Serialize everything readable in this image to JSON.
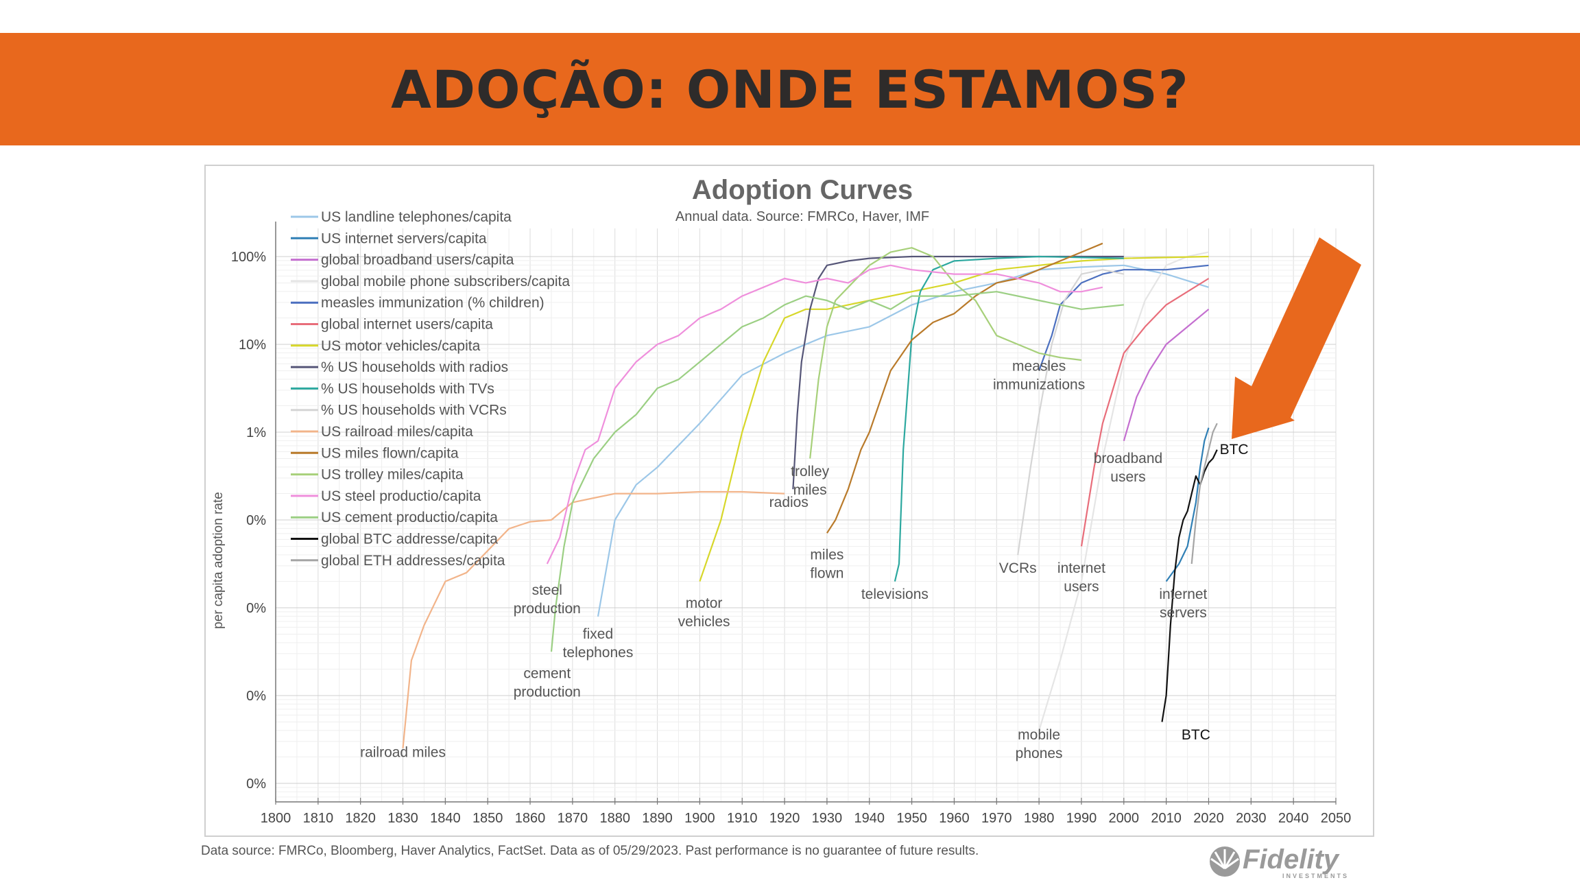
{
  "header": {
    "title": "ADOÇÃO: ONDE ESTAMOS?",
    "accent_color": "#e8681d",
    "title_color": "#2e2b2a"
  },
  "footer": {
    "source_note": "Data source: FMRCo, Bloomberg, Haver Analytics, FactSet. Data as of 05/29/2023. Past performance is no guarantee of future results.",
    "logo_text": "Fidelity",
    "logo_subtext": "INVESTMENTS"
  },
  "chart_data": {
    "type": "line",
    "title": "Adoption Curves",
    "subtitle": "Annual data.  Source: FMRCo, Haver, IMF",
    "xlabel": "",
    "ylabel": "per capita adoption rate",
    "xlim": [
      1800,
      2050
    ],
    "x_ticks": [
      1800,
      1810,
      1820,
      1830,
      1840,
      1850,
      1860,
      1870,
      1880,
      1890,
      1900,
      1910,
      1920,
      1930,
      1940,
      1950,
      1960,
      1970,
      1980,
      1990,
      2000,
      2010,
      2020,
      2030,
      2040,
      2050
    ],
    "y_scale": "log",
    "ylim_log10": [
      -5,
      0.25
    ],
    "y_ticks": [
      {
        "log10": 0,
        "label": "100%"
      },
      {
        "log10": -1,
        "label": "10%"
      },
      {
        "log10": -2,
        "label": "1%"
      },
      {
        "log10": -3,
        "label": "0%"
      },
      {
        "log10": -4,
        "label": "0%"
      },
      {
        "log10": -5,
        "label": "0%"
      },
      {
        "log10": -6,
        "label": "0%"
      }
    ],
    "grid": true,
    "legend_position": "top-left",
    "series": [
      {
        "name": "US landline telephones/capita",
        "color": "#9cc7e8",
        "points": [
          [
            1876,
            -4.1
          ],
          [
            1880,
            -3.0
          ],
          [
            1885,
            -2.6
          ],
          [
            1890,
            -2.4
          ],
          [
            1900,
            -1.9
          ],
          [
            1910,
            -1.35
          ],
          [
            1920,
            -1.1
          ],
          [
            1930,
            -0.9
          ],
          [
            1940,
            -0.8
          ],
          [
            1950,
            -0.55
          ],
          [
            1960,
            -0.4
          ],
          [
            1970,
            -0.3
          ],
          [
            1980,
            -0.15
          ],
          [
            1990,
            -0.12
          ],
          [
            2000,
            -0.1
          ],
          [
            2010,
            -0.2
          ],
          [
            2020,
            -0.35
          ]
        ]
      },
      {
        "name": "US internet servers/capita",
        "color": "#2f7fb5",
        "points": [
          [
            2010,
            -3.7
          ],
          [
            2013,
            -3.5
          ],
          [
            2015,
            -3.3
          ],
          [
            2017,
            -2.8
          ],
          [
            2018,
            -2.4
          ],
          [
            2019,
            -2.1
          ],
          [
            2020,
            -1.95
          ]
        ]
      },
      {
        "name": "global broadband users/capita",
        "color": "#c46fd0",
        "points": [
          [
            2000,
            -2.1
          ],
          [
            2003,
            -1.6
          ],
          [
            2006,
            -1.3
          ],
          [
            2010,
            -1.0
          ],
          [
            2015,
            -0.8
          ],
          [
            2020,
            -0.6
          ]
        ]
      },
      {
        "name": "global mobile phone subscribers/capita",
        "color": "#e5e5e5",
        "points": [
          [
            1980,
            -5.4
          ],
          [
            1985,
            -4.6
          ],
          [
            1990,
            -3.7
          ],
          [
            1995,
            -2.3
          ],
          [
            2000,
            -1.2
          ],
          [
            2005,
            -0.5
          ],
          [
            2010,
            -0.1
          ],
          [
            2015,
            0.0
          ],
          [
            2020,
            0.05
          ]
        ]
      },
      {
        "name": "measles immunization (% children)",
        "color": "#4b6fbf",
        "points": [
          [
            1980,
            -1.3
          ],
          [
            1983,
            -0.9
          ],
          [
            1985,
            -0.55
          ],
          [
            1990,
            -0.3
          ],
          [
            1995,
            -0.2
          ],
          [
            2000,
            -0.15
          ],
          [
            2010,
            -0.15
          ],
          [
            2020,
            -0.1
          ]
        ]
      },
      {
        "name": "global internet users/capita",
        "color": "#e86d7a",
        "points": [
          [
            1990,
            -3.3
          ],
          [
            1993,
            -2.4
          ],
          [
            1995,
            -1.9
          ],
          [
            2000,
            -1.1
          ],
          [
            2005,
            -0.8
          ],
          [
            2010,
            -0.55
          ],
          [
            2015,
            -0.4
          ],
          [
            2020,
            -0.25
          ]
        ]
      },
      {
        "name": "US motor vehicles/capita",
        "color": "#d7d72a",
        "points": [
          [
            1900,
            -3.7
          ],
          [
            1905,
            -3.0
          ],
          [
            1910,
            -2.0
          ],
          [
            1915,
            -1.2
          ],
          [
            1920,
            -0.7
          ],
          [
            1925,
            -0.6
          ],
          [
            1930,
            -0.6
          ],
          [
            1935,
            -0.55
          ],
          [
            1940,
            -0.5
          ],
          [
            1950,
            -0.4
          ],
          [
            1960,
            -0.3
          ],
          [
            1970,
            -0.15
          ],
          [
            1980,
            -0.1
          ],
          [
            1990,
            -0.05
          ],
          [
            2000,
            -0.02
          ],
          [
            2020,
            0.0
          ]
        ]
      },
      {
        "name": "% US households with radios",
        "color": "#555577",
        "points": [
          [
            1922,
            -2.65
          ],
          [
            1923,
            -1.8
          ],
          [
            1924,
            -1.2
          ],
          [
            1926,
            -0.6
          ],
          [
            1928,
            -0.25
          ],
          [
            1930,
            -0.1
          ],
          [
            1935,
            -0.05
          ],
          [
            1940,
            -0.02
          ],
          [
            1950,
            0.0
          ],
          [
            1960,
            0.0
          ],
          [
            1980,
            0.0
          ],
          [
            2000,
            0.0
          ]
        ]
      },
      {
        "name": "% US households with TVs",
        "color": "#2ca89f",
        "points": [
          [
            1946,
            -3.7
          ],
          [
            1947,
            -3.5
          ],
          [
            1948,
            -2.2
          ],
          [
            1950,
            -0.9
          ],
          [
            1952,
            -0.4
          ],
          [
            1955,
            -0.15
          ],
          [
            1960,
            -0.05
          ],
          [
            1970,
            -0.02
          ],
          [
            1980,
            0.0
          ],
          [
            2000,
            -0.02
          ]
        ]
      },
      {
        "name": "% US households with VCRs",
        "color": "#d5d5d5",
        "points": [
          [
            1975,
            -3.4
          ],
          [
            1978,
            -2.4
          ],
          [
            1980,
            -1.8
          ],
          [
            1983,
            -1.0
          ],
          [
            1986,
            -0.5
          ],
          [
            1990,
            -0.2
          ],
          [
            1995,
            -0.15
          ],
          [
            2000,
            -0.2
          ]
        ]
      },
      {
        "name": "US railroad miles/capita",
        "color": "#f2b48a",
        "points": [
          [
            1830,
            -5.6
          ],
          [
            1832,
            -4.6
          ],
          [
            1835,
            -4.2
          ],
          [
            1840,
            -3.7
          ],
          [
            1845,
            -3.6
          ],
          [
            1850,
            -3.35
          ],
          [
            1855,
            -3.1
          ],
          [
            1860,
            -3.02
          ],
          [
            1865,
            -3.0
          ],
          [
            1870,
            -2.8
          ],
          [
            1875,
            -2.75
          ],
          [
            1880,
            -2.7
          ],
          [
            1890,
            -2.7
          ],
          [
            1900,
            -2.68
          ],
          [
            1910,
            -2.68
          ],
          [
            1920,
            -2.7
          ]
        ]
      },
      {
        "name": "US miles flown/capita",
        "color": "#b97a2a",
        "points": [
          [
            1930,
            -3.15
          ],
          [
            1932,
            -3.0
          ],
          [
            1935,
            -2.65
          ],
          [
            1938,
            -2.2
          ],
          [
            1940,
            -2.0
          ],
          [
            1945,
            -1.3
          ],
          [
            1950,
            -0.95
          ],
          [
            1955,
            -0.75
          ],
          [
            1960,
            -0.65
          ],
          [
            1965,
            -0.45
          ],
          [
            1970,
            -0.3
          ],
          [
            1975,
            -0.25
          ],
          [
            1980,
            -0.15
          ],
          [
            1985,
            -0.05
          ],
          [
            1990,
            0.05
          ],
          [
            1995,
            0.15
          ]
        ]
      },
      {
        "name": "US trolley miles/capita",
        "color": "#a7d07a",
        "points": [
          [
            1926,
            -2.3
          ],
          [
            1928,
            -1.4
          ],
          [
            1930,
            -0.8
          ],
          [
            1932,
            -0.5
          ],
          [
            1935,
            -0.35
          ],
          [
            1940,
            -0.1
          ],
          [
            1945,
            0.05
          ],
          [
            1950,
            0.1
          ],
          [
            1955,
            0.0
          ],
          [
            1960,
            -0.3
          ],
          [
            1965,
            -0.5
          ],
          [
            1970,
            -0.9
          ],
          [
            1975,
            -1.0
          ],
          [
            1980,
            -1.1
          ],
          [
            1985,
            -1.15
          ],
          [
            1990,
            -1.18
          ]
        ]
      },
      {
        "name": "US steel productio/capita",
        "color": "#ef8fdc",
        "points": [
          [
            1864,
            -3.5
          ],
          [
            1867,
            -3.2
          ],
          [
            1870,
            -2.6
          ],
          [
            1873,
            -2.2
          ],
          [
            1876,
            -2.1
          ],
          [
            1880,
            -1.5
          ],
          [
            1885,
            -1.2
          ],
          [
            1890,
            -1.0
          ],
          [
            1895,
            -0.9
          ],
          [
            1900,
            -0.7
          ],
          [
            1905,
            -0.6
          ],
          [
            1910,
            -0.45
          ],
          [
            1915,
            -0.35
          ],
          [
            1920,
            -0.25
          ],
          [
            1925,
            -0.3
          ],
          [
            1930,
            -0.25
          ],
          [
            1935,
            -0.3
          ],
          [
            1940,
            -0.15
          ],
          [
            1945,
            -0.1
          ],
          [
            1950,
            -0.15
          ],
          [
            1960,
            -0.2
          ],
          [
            1970,
            -0.2
          ],
          [
            1980,
            -0.3
          ],
          [
            1985,
            -0.4
          ],
          [
            1990,
            -0.4
          ],
          [
            1995,
            -0.35
          ]
        ]
      },
      {
        "name": "US cement productio/capita",
        "color": "#9bcf83",
        "points": [
          [
            1865,
            -4.5
          ],
          [
            1866,
            -4.0
          ],
          [
            1868,
            -3.3
          ],
          [
            1870,
            -2.8
          ],
          [
            1875,
            -2.3
          ],
          [
            1880,
            -2.0
          ],
          [
            1885,
            -1.8
          ],
          [
            1890,
            -1.5
          ],
          [
            1895,
            -1.4
          ],
          [
            1900,
            -1.2
          ],
          [
            1905,
            -1.0
          ],
          [
            1910,
            -0.8
          ],
          [
            1915,
            -0.7
          ],
          [
            1920,
            -0.55
          ],
          [
            1925,
            -0.45
          ],
          [
            1930,
            -0.5
          ],
          [
            1935,
            -0.6
          ],
          [
            1940,
            -0.5
          ],
          [
            1945,
            -0.6
          ],
          [
            1950,
            -0.45
          ],
          [
            1960,
            -0.45
          ],
          [
            1970,
            -0.4
          ],
          [
            1980,
            -0.5
          ],
          [
            1990,
            -0.6
          ],
          [
            2000,
            -0.55
          ]
        ]
      },
      {
        "name": "global BTC addresse/capita",
        "color": "#111111",
        "points": [
          [
            2009,
            -5.3
          ],
          [
            2010,
            -5.0
          ],
          [
            2011,
            -4.2
          ],
          [
            2012,
            -3.6
          ],
          [
            2013,
            -3.2
          ],
          [
            2014,
            -3.0
          ],
          [
            2015,
            -2.9
          ],
          [
            2016,
            -2.7
          ],
          [
            2017,
            -2.5
          ],
          [
            2018,
            -2.6
          ],
          [
            2019,
            -2.45
          ],
          [
            2020,
            -2.35
          ],
          [
            2021,
            -2.3
          ],
          [
            2022,
            -2.2
          ]
        ]
      },
      {
        "name": "global ETH addresses/capita",
        "color": "#a5a5a5",
        "points": [
          [
            2016,
            -3.5
          ],
          [
            2017,
            -3.0
          ],
          [
            2018,
            -2.6
          ],
          [
            2019,
            -2.4
          ],
          [
            2020,
            -2.2
          ],
          [
            2021,
            -2.0
          ],
          [
            2022,
            -1.9
          ]
        ]
      }
    ],
    "annotations": [
      {
        "text": "railroad miles",
        "x": 1830,
        "y": -5.7
      },
      {
        "text": "steel\nproduction",
        "x": 1864,
        "y": -3.85
      },
      {
        "text": "cement\nproduction",
        "x": 1864,
        "y": -4.8
      },
      {
        "text": "fixed\ntelephones",
        "x": 1876,
        "y": -4.35
      },
      {
        "text": "motor\nvehicles",
        "x": 1901,
        "y": -4.0
      },
      {
        "text": "trolley\nmiles",
        "x": 1926,
        "y": -2.5
      },
      {
        "text": "radios",
        "x": 1921,
        "y": -2.85
      },
      {
        "text": "miles\nflown",
        "x": 1930,
        "y": -3.45
      },
      {
        "text": "televisions",
        "x": 1946,
        "y": -3.9
      },
      {
        "text": "VCRs",
        "x": 1975,
        "y": -3.6
      },
      {
        "text": "measles\nimmunizations",
        "x": 1980,
        "y": -1.3
      },
      {
        "text": "mobile\nphones",
        "x": 1980,
        "y": -5.5
      },
      {
        "text": "internet\nusers",
        "x": 1990,
        "y": -3.6
      },
      {
        "text": "broadband\nusers",
        "x": 2001,
        "y": -2.35
      },
      {
        "text": "internet\nservers",
        "x": 2014,
        "y": -3.9
      },
      {
        "text": "BTC",
        "x": 2017,
        "y": -5.5
      },
      {
        "text": "BTC",
        "x": 2026,
        "y": -2.25
      }
    ]
  }
}
